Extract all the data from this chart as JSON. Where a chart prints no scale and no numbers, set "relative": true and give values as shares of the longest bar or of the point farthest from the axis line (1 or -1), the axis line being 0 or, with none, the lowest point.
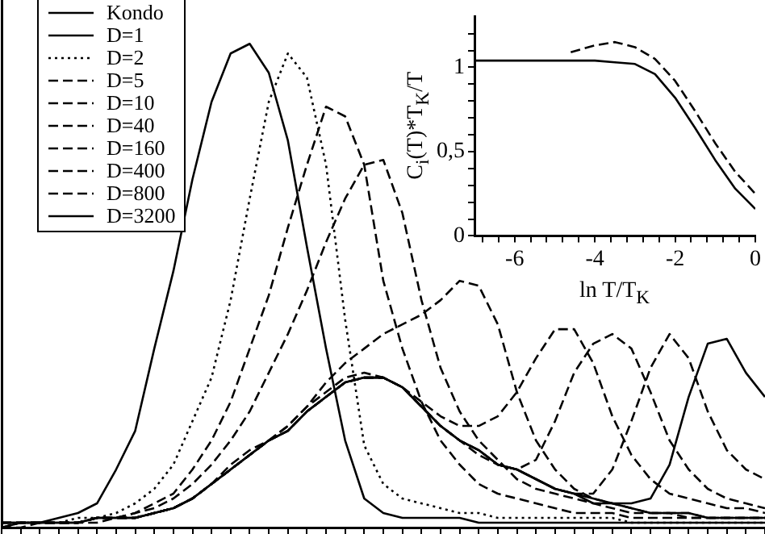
{
  "chart_data": [
    {
      "type": "line",
      "relative": true,
      "tick_labels": false,
      "legend": "top left",
      "marker": "none",
      "categories": [
        null,
        null,
        null,
        null,
        null,
        null,
        null,
        null,
        null,
        null,
        null,
        null,
        null,
        null,
        null,
        null,
        null,
        null,
        null,
        null,
        null,
        null,
        null,
        null,
        null,
        null,
        null,
        null,
        null,
        null,
        null,
        null,
        null,
        null,
        null,
        null,
        null,
        null,
        null,
        null,
        null
      ],
      "series": [
        {
          "name": "Kondo",
          "color": "#000000",
          "line_style": "solid",
          "values": [
            0.01,
            0.01,
            0.01,
            0.01,
            0.01,
            0.02,
            0.02,
            0.02,
            0.03,
            0.04,
            0.06,
            0.09,
            0.12,
            0.15,
            0.18,
            0.2,
            0.24,
            0.27,
            0.3,
            0.31,
            0.31,
            0.29,
            0.25,
            0.21,
            0.18,
            0.16,
            0.13,
            0.12,
            0.1,
            0.08,
            0.07,
            0.06,
            0.05,
            0.04,
            0.03,
            0.03,
            0.03,
            0.02,
            0.02,
            0.02,
            0.02
          ]
        },
        {
          "name": "D=1",
          "color": "#000000",
          "line_style": "solid",
          "values": [
            0,
            0.01,
            0.01,
            0.02,
            0.03,
            0.05,
            0.12,
            0.2,
            0.37,
            0.53,
            0.72,
            0.88,
            0.98,
            1,
            0.94,
            0.8,
            0.58,
            0.37,
            0.18,
            0.06,
            0.03,
            0.02,
            0.02,
            0.02,
            0.02,
            0.01,
            0.01,
            0.01,
            0.01,
            0.01,
            0.01,
            0.01,
            0.01,
            0.01,
            0.01,
            0.01,
            0.01,
            0.01,
            0.01,
            0.01,
            0.01
          ]
        },
        {
          "name": "D=2",
          "color": "#000000",
          "line_style": "dotted",
          "values": [
            0,
            0.01,
            0.01,
            0.01,
            0.02,
            0.02,
            0.03,
            0.05,
            0.08,
            0.13,
            0.22,
            0.31,
            0.47,
            0.68,
            0.88,
            0.98,
            0.93,
            0.75,
            0.43,
            0.17,
            0.09,
            0.06,
            0.05,
            0.04,
            0.03,
            0.03,
            0.02,
            0.02,
            0.02,
            0.02,
            0.02,
            0.02,
            0.02,
            0.01,
            0.01,
            0.01,
            0.01,
            0.01,
            0.01,
            0.01,
            0.01
          ]
        },
        {
          "name": "D=5",
          "color": "#000000",
          "line_style": "dashed",
          "values": [
            0,
            0,
            0.01,
            0.01,
            0.01,
            0.01,
            0.02,
            0.03,
            0.05,
            0.07,
            0.12,
            0.18,
            0.26,
            0.37,
            0.48,
            0.62,
            0.75,
            0.87,
            0.85,
            0.75,
            0.51,
            0.37,
            0.26,
            0.18,
            0.13,
            0.09,
            0.07,
            0.06,
            0.05,
            0.04,
            0.03,
            0.03,
            0.03,
            0.02,
            0.02,
            0.02,
            0.02,
            0.02,
            0.02,
            0.02,
            0.02
          ]
        },
        {
          "name": "D=10",
          "color": "#000000",
          "line_style": "dashed",
          "values": [
            0,
            0.01,
            0.01,
            0.01,
            0.01,
            0.02,
            0.02,
            0.03,
            0.04,
            0.06,
            0.09,
            0.13,
            0.18,
            0.24,
            0.32,
            0.4,
            0.49,
            0.59,
            0.68,
            0.75,
            0.76,
            0.65,
            0.47,
            0.33,
            0.24,
            0.18,
            0.14,
            0.1,
            0.08,
            0.07,
            0.06,
            0.05,
            0.04,
            0.03,
            0.03,
            0.03,
            0.02,
            0.02,
            0.02,
            0.02,
            0.02
          ]
        },
        {
          "name": "D=40",
          "color": "#000000",
          "line_style": "dashed",
          "values": [
            0.01,
            0.01,
            0.01,
            0.01,
            0.01,
            0.02,
            0.02,
            0.02,
            0.03,
            0.04,
            0.06,
            0.09,
            0.13,
            0.16,
            0.18,
            0.21,
            0.25,
            0.3,
            0.34,
            0.37,
            0.4,
            0.42,
            0.44,
            0.47,
            0.51,
            0.5,
            0.42,
            0.28,
            0.18,
            0.12,
            0.08,
            0.06,
            0.05,
            0.04,
            0.03,
            0.03,
            0.03,
            0.02,
            0.02,
            0.02,
            0.02
          ]
        },
        {
          "name": "D=160",
          "color": "#000000",
          "line_style": "dashed",
          "values": [
            0.01,
            0.01,
            0.01,
            0.01,
            0.01,
            0.02,
            0.02,
            0.02,
            0.03,
            0.04,
            0.06,
            0.09,
            0.12,
            0.15,
            0.18,
            0.21,
            0.25,
            0.28,
            0.31,
            0.32,
            0.31,
            0.29,
            0.26,
            0.23,
            0.21,
            0.21,
            0.23,
            0.28,
            0.35,
            0.41,
            0.41,
            0.34,
            0.23,
            0.15,
            0.1,
            0.07,
            0.06,
            0.05,
            0.04,
            0.04,
            0.03
          ]
        },
        {
          "name": "D=400",
          "color": "#000000",
          "line_style": "dashed",
          "values": [
            0.01,
            0.01,
            0.01,
            0.01,
            0.01,
            0.02,
            0.02,
            0.02,
            0.03,
            0.04,
            0.06,
            0.09,
            0.12,
            0.15,
            0.18,
            0.2,
            0.24,
            0.27,
            0.3,
            0.31,
            0.31,
            0.29,
            0.25,
            0.21,
            0.18,
            0.15,
            0.13,
            0.12,
            0.14,
            0.22,
            0.32,
            0.38,
            0.4,
            0.37,
            0.28,
            0.18,
            0.12,
            0.08,
            0.06,
            0.05,
            0.04
          ]
        },
        {
          "name": "D=800",
          "color": "#000000",
          "line_style": "dashed",
          "values": [
            0.01,
            0.01,
            0.01,
            0.01,
            0.01,
            0.02,
            0.02,
            0.02,
            0.03,
            0.04,
            0.06,
            0.09,
            0.12,
            0.15,
            0.18,
            0.2,
            0.24,
            0.27,
            0.3,
            0.31,
            0.31,
            0.29,
            0.25,
            0.21,
            0.18,
            0.16,
            0.13,
            0.12,
            0.1,
            0.08,
            0.07,
            0.07,
            0.12,
            0.22,
            0.33,
            0.4,
            0.35,
            0.24,
            0.16,
            0.12,
            0.1
          ]
        },
        {
          "name": "D=3200",
          "color": "#000000",
          "line_style": "solid",
          "values": [
            0.01,
            0.01,
            0.01,
            0.01,
            0.01,
            0.02,
            0.02,
            0.02,
            0.03,
            0.04,
            0.06,
            0.09,
            0.12,
            0.15,
            0.18,
            0.2,
            0.24,
            0.27,
            0.3,
            0.31,
            0.31,
            0.29,
            0.25,
            0.21,
            0.18,
            0.16,
            0.13,
            0.12,
            0.1,
            0.08,
            0.07,
            0.05,
            0.05,
            0.05,
            0.06,
            0.13,
            0.27,
            0.38,
            0.39,
            0.32,
            0.27
          ]
        }
      ]
    },
    {
      "type": "line",
      "xlabel": "ln T/T$_{K}$",
      "ylabel": "C$_{i}$(T)*T$_{K}$/T",
      "marker": "none",
      "xlim": [
        -7,
        0
      ],
      "ylim": [
        0,
        1.3
      ],
      "xticks": [
        {
          "value": -6.8,
          "label": null
        },
        {
          "value": -6.4,
          "label": null
        },
        -6,
        {
          "value": -5.6,
          "label": null
        },
        {
          "value": -5.2,
          "label": null
        },
        {
          "value": -4.8,
          "label": null
        },
        {
          "value": -4.4,
          "label": null
        },
        -4,
        {
          "value": -3.6,
          "label": null
        },
        {
          "value": -3.2,
          "label": null
        },
        {
          "value": -2.8,
          "label": null
        },
        {
          "value": -2.4,
          "label": null
        },
        -2,
        {
          "value": -1.6,
          "label": null
        },
        {
          "value": -1.2,
          "label": null
        },
        {
          "value": -0.8,
          "label": null
        },
        {
          "value": -0.4,
          "label": null
        },
        0
      ],
      "yticks": [
        0,
        {
          "value": 0.1,
          "label": null
        },
        {
          "value": 0.2,
          "label": null
        },
        {
          "value": 0.3,
          "label": null
        },
        {
          "value": 0.4,
          "label": null
        },
        {
          "value": 0.5,
          "label": "0,5"
        },
        {
          "value": 0.6,
          "label": null
        },
        {
          "value": 0.7,
          "label": null
        },
        {
          "value": 0.8,
          "label": null
        },
        {
          "value": 0.9,
          "label": null
        },
        1,
        {
          "value": 1.1,
          "label": null
        },
        {
          "value": 1.2,
          "label": null
        }
      ],
      "series": [
        {
          "color": "#000000",
          "line_style": "solid",
          "x": [
            -7,
            -6,
            -5,
            -4,
            -3.5,
            -3,
            -2.5,
            -2,
            -1.5,
            -1,
            -0.5,
            0
          ],
          "values": [
            1.04,
            1.04,
            1.04,
            1.04,
            1.03,
            1.02,
            0.96,
            0.82,
            0.64,
            0.45,
            0.28,
            0.16
          ]
        },
        {
          "color": "#000000",
          "line_style": "dashed",
          "x": [
            -4.6,
            -4,
            -3.5,
            -3,
            -2.5,
            -2,
            -1.5,
            -1,
            -0.5,
            0
          ],
          "values": [
            1.09,
            1.13,
            1.15,
            1.12,
            1.05,
            0.92,
            0.74,
            0.55,
            0.38,
            0.25
          ]
        }
      ]
    }
  ]
}
